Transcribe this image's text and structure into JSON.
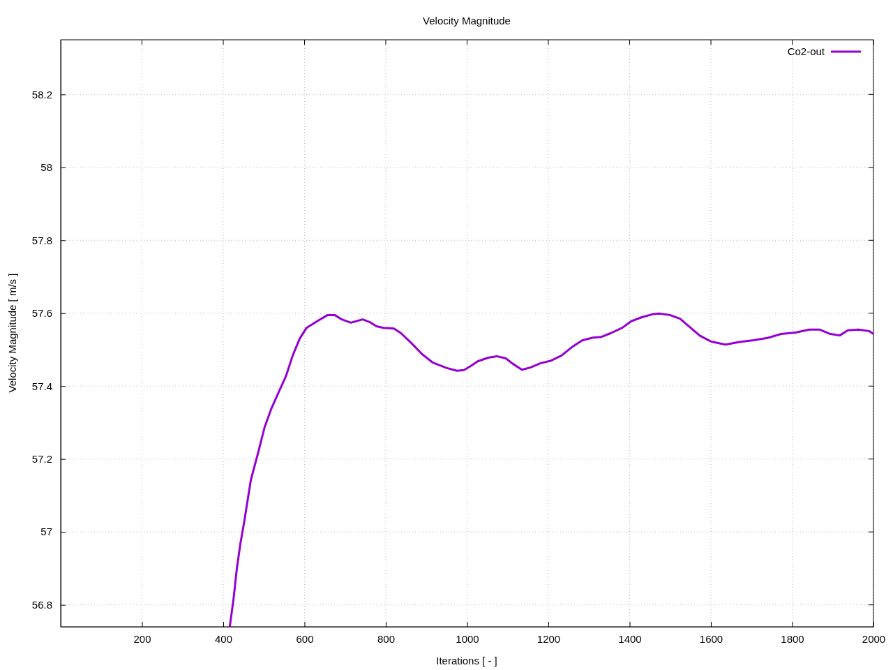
{
  "chart_data": {
    "type": "line",
    "title": "Velocity Magnitude",
    "xlabel": "Iterations [ - ]",
    "ylabel": "Velocity Magnitude [ m/s ]",
    "xlim": [
      0,
      2000
    ],
    "ylim": [
      56.74,
      58.35
    ],
    "xticks": [
      200,
      400,
      600,
      800,
      1000,
      1200,
      1400,
      1600,
      1800,
      2000
    ],
    "yticks": [
      56.8,
      57,
      57.2,
      57.4,
      57.6,
      57.8,
      58,
      58.2
    ],
    "grid": true,
    "legend": "top right",
    "line_style": "solid",
    "marker": "none",
    "x": [
      416,
      425,
      433.5,
      442,
      451,
      468,
      485.5,
      502,
      519,
      536.6,
      553.8,
      571,
      588,
      605,
      631,
      657,
      674.5,
      691.7,
      714,
      743,
      760,
      777,
      794,
      820,
      837.6,
      863,
      889,
      915,
      949,
      975,
      992,
      1009,
      1026,
      1052,
      1073,
      1095.5,
      1112.7,
      1135,
      1155.6,
      1181,
      1207,
      1232.5,
      1258,
      1284,
      1310,
      1331,
      1353,
      1382,
      1404,
      1430,
      1456,
      1473,
      1499,
      1524,
      1550,
      1572,
      1601,
      1636,
      1670,
      1705,
      1739,
      1773,
      1808,
      1842,
      1868,
      1894,
      1917,
      1937,
      1963,
      1989,
      2000
    ],
    "series": [
      {
        "name": "Co2-out",
        "color": "#9400d3",
        "values": [
          56.74,
          56.813,
          56.9,
          56.967,
          57.024,
          57.143,
          57.216,
          57.288,
          57.34,
          57.384,
          57.426,
          57.484,
          57.53,
          57.56,
          57.578,
          57.595,
          57.595,
          57.583,
          57.574,
          57.583,
          57.576,
          57.564,
          57.56,
          57.558,
          57.545,
          57.518,
          57.488,
          57.465,
          57.45,
          57.442,
          57.444,
          57.455,
          57.468,
          57.478,
          57.482,
          57.476,
          57.461,
          57.445,
          57.451,
          57.463,
          57.47,
          57.484,
          57.507,
          57.526,
          57.533,
          57.535,
          57.545,
          57.56,
          57.578,
          57.589,
          57.597,
          57.599,
          57.595,
          57.585,
          57.56,
          57.539,
          57.522,
          57.514,
          57.521,
          57.526,
          57.532,
          57.543,
          57.547,
          57.555,
          57.555,
          57.543,
          57.539,
          57.553,
          57.555,
          57.551,
          57.543
        ]
      }
    ]
  }
}
